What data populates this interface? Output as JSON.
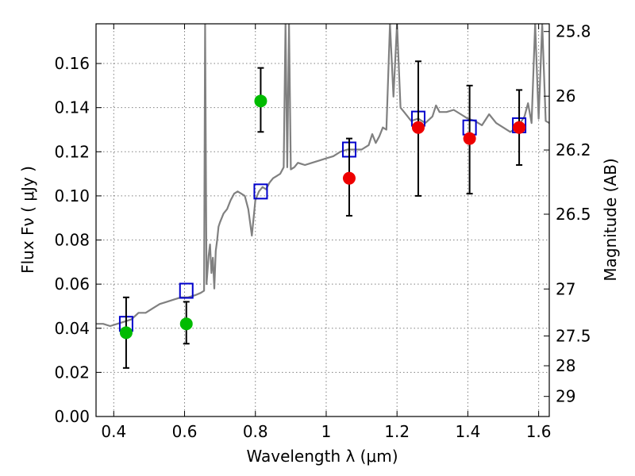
{
  "chart_data": {
    "type": "scatter",
    "title": "",
    "xlabel": "Wavelength  λ (μm)",
    "ylabel": "Flux  Fν  ( μJy )",
    "y2label": "Magnitude (AB)",
    "xlim": [
      0.35,
      1.63
    ],
    "ylim": [
      0.0,
      0.178
    ],
    "grid": true,
    "x_ticks": [
      0.4,
      0.6,
      0.8,
      1.0,
      1.2,
      1.4,
      1.6
    ],
    "x_tick_labels": [
      "0.4",
      "0.6",
      "0.8",
      "1",
      "1.2",
      "1.4",
      "1.6"
    ],
    "y_ticks": [
      0.0,
      0.02,
      0.04,
      0.06,
      0.08,
      0.1,
      0.12,
      0.14,
      0.16
    ],
    "y_tick_labels": [
      "0.00",
      "0.02",
      "0.04",
      "0.06",
      "0.08",
      "0.10",
      "0.12",
      "0.14",
      "0.16"
    ],
    "y2_ticks": [
      {
        "label": "25.8",
        "flux": 0.1745
      },
      {
        "label": "26",
        "flux": 0.1452
      },
      {
        "label": "26.2",
        "flux": 0.1208
      },
      {
        "label": "26.5",
        "flux": 0.0917
      },
      {
        "label": "27",
        "flux": 0.0578
      },
      {
        "label": "27.5",
        "flux": 0.0365
      },
      {
        "label": "28",
        "flux": 0.023
      },
      {
        "label": "29",
        "flux": 0.0091
      }
    ],
    "colors": {
      "spectrum": "#808080",
      "model": "#0000cc",
      "ground": "#00bb00",
      "nir": "#ee0000",
      "errorbar": "#000000",
      "grid": "#808080"
    },
    "series": [
      {
        "kind": "spectrum",
        "points": [
          [
            0.35,
            0.042
          ],
          [
            0.37,
            0.042
          ],
          [
            0.39,
            0.041
          ],
          [
            0.41,
            0.042
          ],
          [
            0.43,
            0.043
          ],
          [
            0.45,
            0.044
          ],
          [
            0.47,
            0.047
          ],
          [
            0.49,
            0.047
          ],
          [
            0.51,
            0.049
          ],
          [
            0.53,
            0.051
          ],
          [
            0.55,
            0.052
          ],
          [
            0.57,
            0.053
          ],
          [
            0.59,
            0.054
          ],
          [
            0.61,
            0.054
          ],
          [
            0.63,
            0.055
          ],
          [
            0.645,
            0.056
          ],
          [
            0.655,
            0.057
          ],
          [
            0.658,
            0.178
          ],
          [
            0.662,
            0.06
          ],
          [
            0.668,
            0.073
          ],
          [
            0.672,
            0.078
          ],
          [
            0.676,
            0.065
          ],
          [
            0.68,
            0.072
          ],
          [
            0.684,
            0.058
          ],
          [
            0.688,
            0.075
          ],
          [
            0.692,
            0.08
          ],
          [
            0.696,
            0.086
          ],
          [
            0.7,
            0.088
          ],
          [
            0.71,
            0.092
          ],
          [
            0.72,
            0.094
          ],
          [
            0.73,
            0.098
          ],
          [
            0.74,
            0.101
          ],
          [
            0.75,
            0.102
          ],
          [
            0.76,
            0.101
          ],
          [
            0.77,
            0.1
          ],
          [
            0.78,
            0.094
          ],
          [
            0.79,
            0.082
          ],
          [
            0.8,
            0.098
          ],
          [
            0.81,
            0.102
          ],
          [
            0.82,
            0.104
          ],
          [
            0.83,
            0.103
          ],
          [
            0.84,
            0.106
          ],
          [
            0.85,
            0.108
          ],
          [
            0.86,
            0.109
          ],
          [
            0.87,
            0.11
          ],
          [
            0.88,
            0.113
          ],
          [
            0.885,
            0.178
          ],
          [
            0.89,
            0.113
          ],
          [
            0.895,
            0.178
          ],
          [
            0.9,
            0.112
          ],
          [
            0.91,
            0.113
          ],
          [
            0.92,
            0.115
          ],
          [
            0.94,
            0.114
          ],
          [
            0.96,
            0.115
          ],
          [
            0.98,
            0.116
          ],
          [
            1.0,
            0.117
          ],
          [
            1.02,
            0.118
          ],
          [
            1.04,
            0.12
          ],
          [
            1.06,
            0.121
          ],
          [
            1.08,
            0.121
          ],
          [
            1.1,
            0.121
          ],
          [
            1.12,
            0.123
          ],
          [
            1.13,
            0.128
          ],
          [
            1.14,
            0.124
          ],
          [
            1.15,
            0.127
          ],
          [
            1.16,
            0.131
          ],
          [
            1.17,
            0.13
          ],
          [
            1.18,
            0.178
          ],
          [
            1.19,
            0.145
          ],
          [
            1.2,
            0.178
          ],
          [
            1.21,
            0.14
          ],
          [
            1.22,
            0.138
          ],
          [
            1.24,
            0.134
          ],
          [
            1.26,
            0.135
          ],
          [
            1.28,
            0.133
          ],
          [
            1.3,
            0.136
          ],
          [
            1.31,
            0.141
          ],
          [
            1.32,
            0.138
          ],
          [
            1.34,
            0.138
          ],
          [
            1.36,
            0.139
          ],
          [
            1.38,
            0.137
          ],
          [
            1.4,
            0.135
          ],
          [
            1.42,
            0.134
          ],
          [
            1.44,
            0.132
          ],
          [
            1.46,
            0.137
          ],
          [
            1.48,
            0.133
          ],
          [
            1.5,
            0.131
          ],
          [
            1.52,
            0.129
          ],
          [
            1.54,
            0.131
          ],
          [
            1.56,
            0.136
          ],
          [
            1.57,
            0.142
          ],
          [
            1.58,
            0.133
          ],
          [
            1.59,
            0.178
          ],
          [
            1.6,
            0.135
          ],
          [
            1.61,
            0.178
          ],
          [
            1.62,
            0.134
          ],
          [
            1.63,
            0.133
          ]
        ]
      },
      {
        "kind": "model",
        "marker": "open-square",
        "points": [
          [
            0.435,
            0.042
          ],
          [
            0.605,
            0.057
          ],
          [
            0.815,
            0.102
          ],
          [
            1.065,
            0.121
          ],
          [
            1.26,
            0.135
          ],
          [
            1.405,
            0.131
          ],
          [
            1.545,
            0.132
          ]
        ]
      },
      {
        "kind": "ground",
        "marker": "filled-circle",
        "points": [
          {
            "x": 0.435,
            "y": 0.038,
            "lo": 0.022,
            "hi": 0.054
          },
          {
            "x": 0.605,
            "y": 0.042,
            "lo": 0.033,
            "hi": 0.052
          },
          {
            "x": 0.815,
            "y": 0.143,
            "lo": 0.129,
            "hi": 0.158
          }
        ]
      },
      {
        "kind": "nir",
        "marker": "filled-circle",
        "points": [
          {
            "x": 1.065,
            "y": 0.108,
            "lo": 0.091,
            "hi": 0.126
          },
          {
            "x": 1.26,
            "y": 0.131,
            "lo": 0.1,
            "hi": 0.161
          },
          {
            "x": 1.405,
            "y": 0.126,
            "lo": 0.101,
            "hi": 0.15
          },
          {
            "x": 1.545,
            "y": 0.131,
            "lo": 0.114,
            "hi": 0.148
          }
        ]
      }
    ]
  }
}
